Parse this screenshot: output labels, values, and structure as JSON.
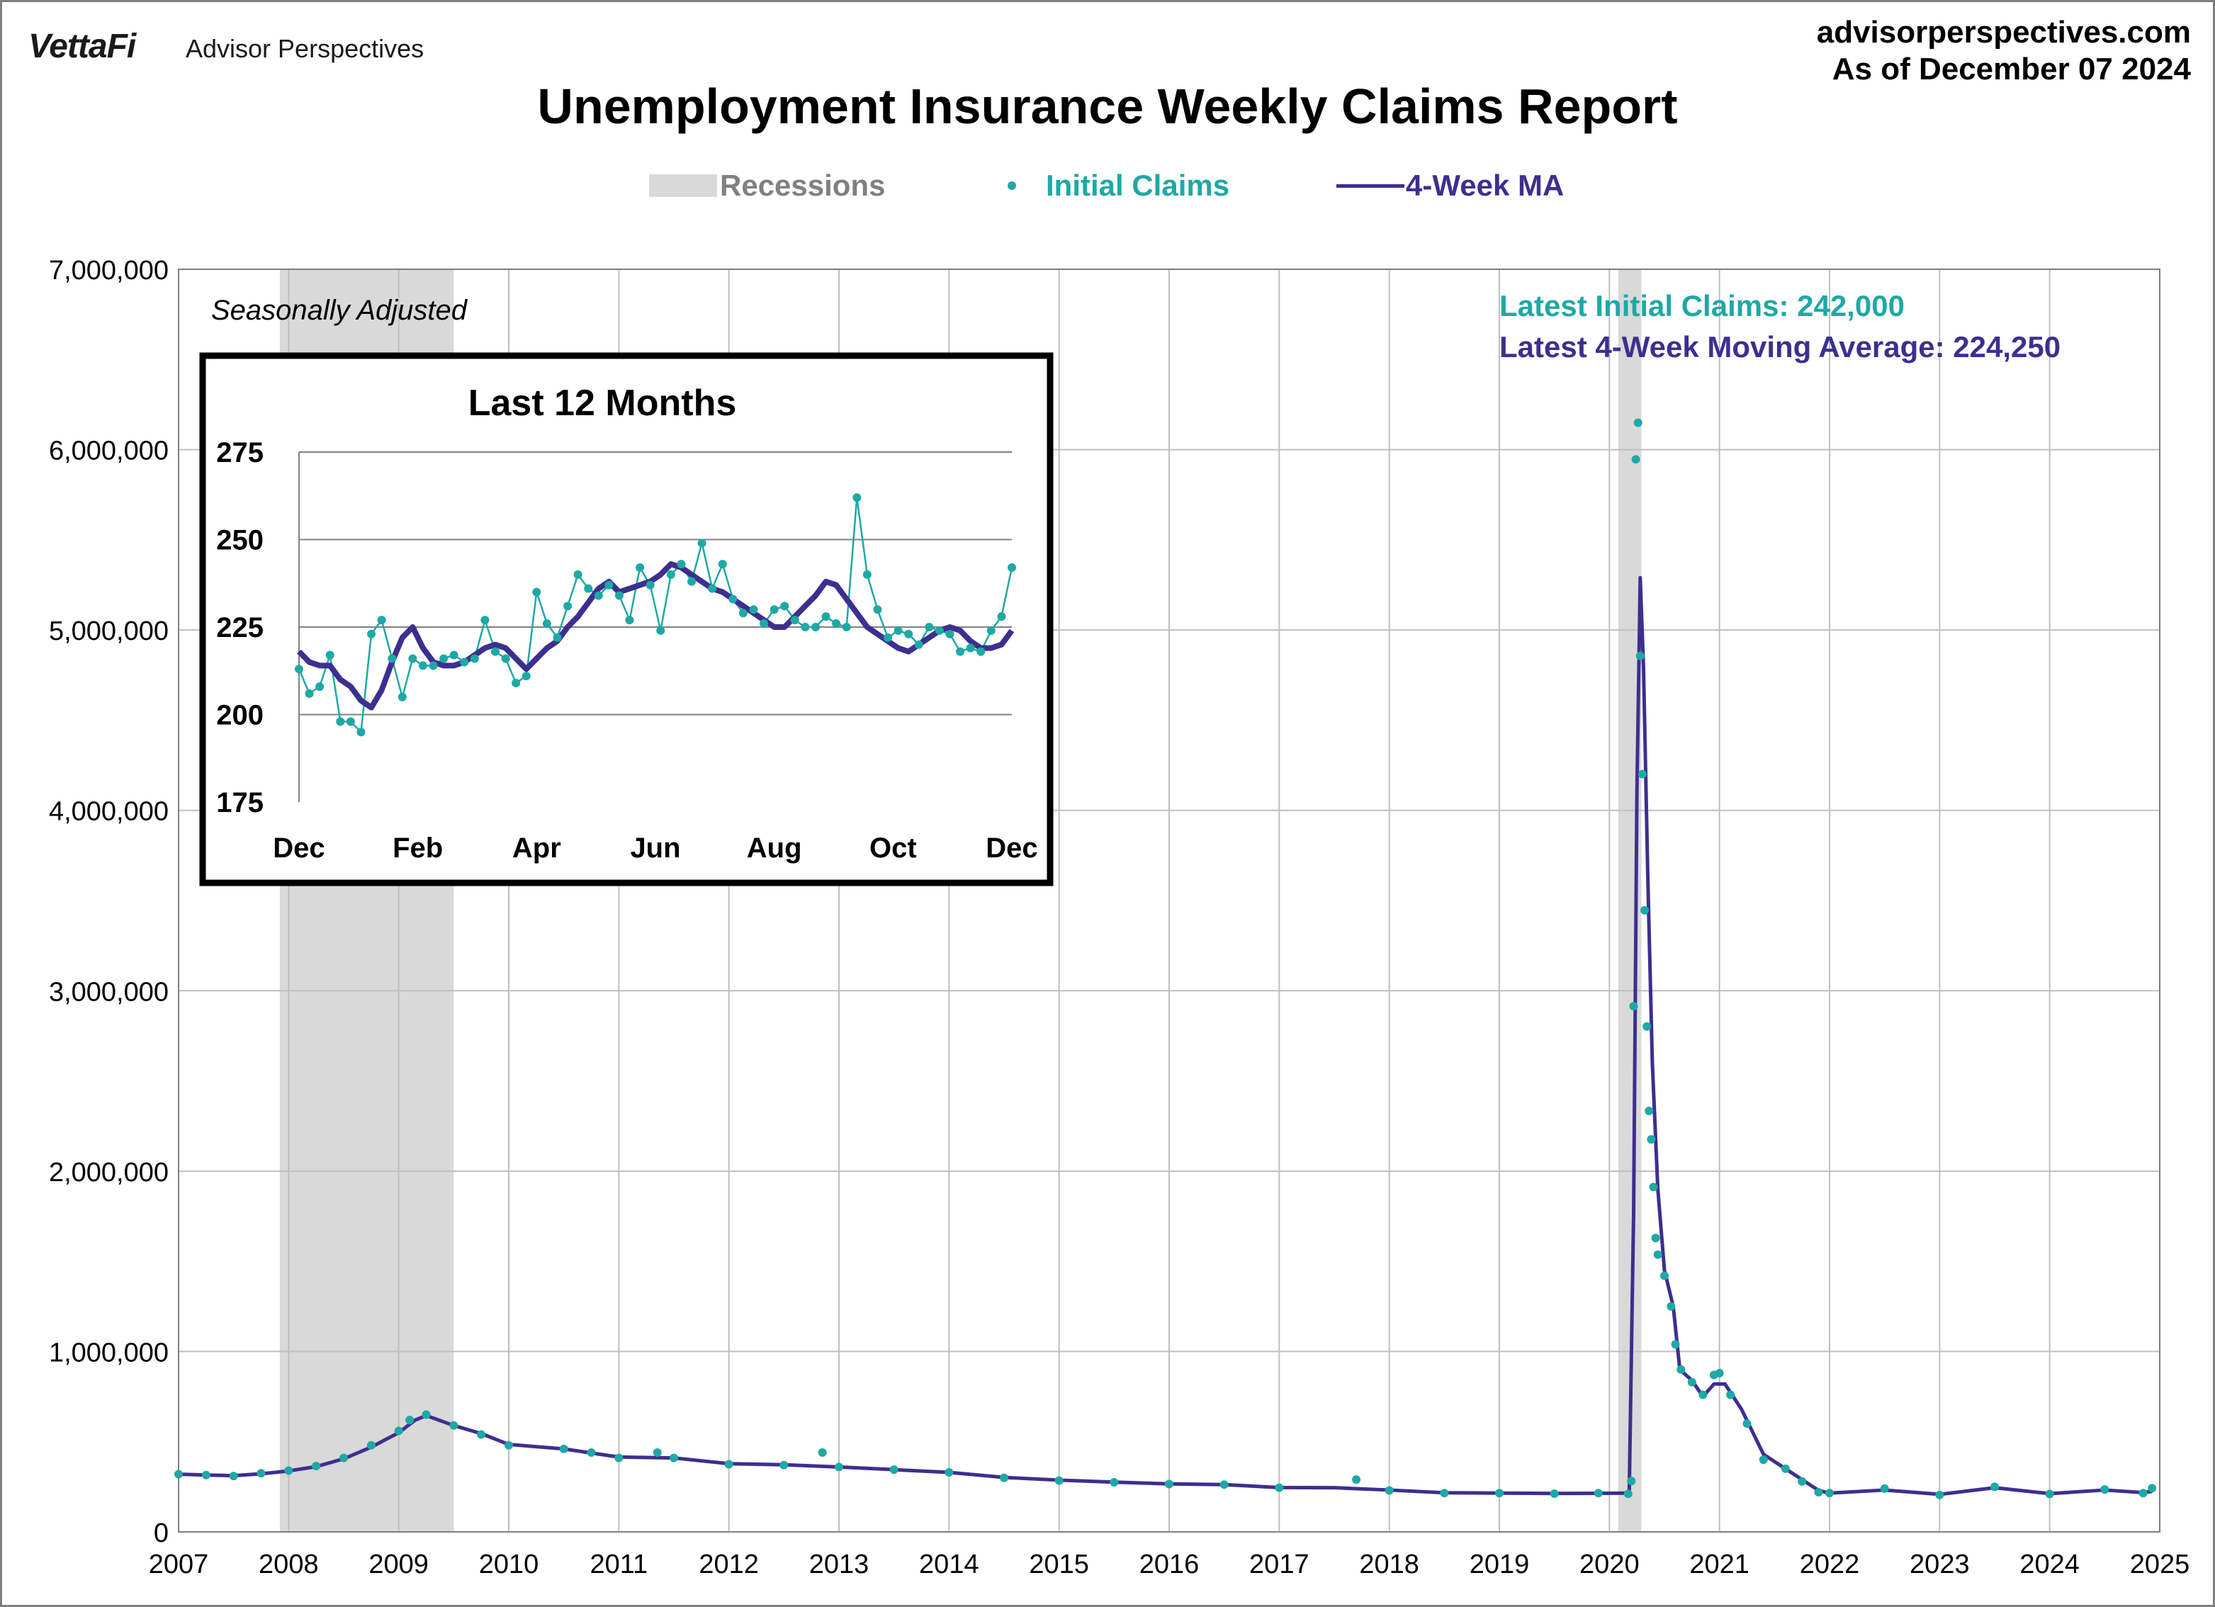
{
  "header": {
    "brand": "VettaFi",
    "brand_sub": "Advisor Perspectives",
    "site": "advisorperspectives.com",
    "as_of": "As of December 07 2024",
    "title": "Unemployment Insurance Weekly Claims Report"
  },
  "legend": {
    "recessions": "Recessions",
    "initial_claims": "Initial Claims",
    "ma": "4-Week MA"
  },
  "annotations": {
    "seasonally_adjusted": "Seasonally Adjusted",
    "latest_claims": "Latest Initial Claims: 242,000",
    "latest_ma": "Latest 4-Week Moving Average: 224,250"
  },
  "colors": {
    "claims": "#1fa8a5",
    "ma": "#3c2f8f",
    "recession": "#d9d9d9",
    "grid": "#bfbfbf"
  },
  "chart_data": [
    {
      "type": "line",
      "id": "main",
      "ylim": [
        0,
        7000000
      ],
      "xlim": [
        2007,
        2025
      ],
      "yticks": [
        {
          "v": 0,
          "label": "0"
        },
        {
          "v": 1000000,
          "label": "1,000,000"
        },
        {
          "v": 2000000,
          "label": "2,000,000"
        },
        {
          "v": 3000000,
          "label": "3,000,000"
        },
        {
          "v": 4000000,
          "label": "4,000,000"
        },
        {
          "v": 5000000,
          "label": "5,000,000"
        },
        {
          "v": 6000000,
          "label": "6,000,000"
        },
        {
          "v": 7000000,
          "label": "7,000,000"
        }
      ],
      "xticks": [
        "2007",
        "2008",
        "2009",
        "2010",
        "2011",
        "2012",
        "2013",
        "2014",
        "2015",
        "2016",
        "2017",
        "2018",
        "2019",
        "2020",
        "2021",
        "2022",
        "2023",
        "2024",
        "2025"
      ],
      "recessions": [
        [
          2007.92,
          2009.5
        ],
        [
          2020.08,
          2020.29
        ]
      ],
      "series": [
        {
          "name": "Initial Claims",
          "style": "markers",
          "points": [
            [
              2007.0,
              320000
            ],
            [
              2007.25,
              315000
            ],
            [
              2007.5,
              310000
            ],
            [
              2007.75,
              325000
            ],
            [
              2008.0,
              340000
            ],
            [
              2008.25,
              365000
            ],
            [
              2008.5,
              410000
            ],
            [
              2008.75,
              480000
            ],
            [
              2009.0,
              560000
            ],
            [
              2009.1,
              620000
            ],
            [
              2009.25,
              650000
            ],
            [
              2009.5,
              590000
            ],
            [
              2009.75,
              540000
            ],
            [
              2010.0,
              480000
            ],
            [
              2010.5,
              460000
            ],
            [
              2010.75,
              440000
            ],
            [
              2011.0,
              410000
            ],
            [
              2011.35,
              440000
            ],
            [
              2011.5,
              410000
            ],
            [
              2012.0,
              375000
            ],
            [
              2012.5,
              370000
            ],
            [
              2012.85,
              440000
            ],
            [
              2013.0,
              360000
            ],
            [
              2013.5,
              345000
            ],
            [
              2014.0,
              330000
            ],
            [
              2014.5,
              300000
            ],
            [
              2015.0,
              285000
            ],
            [
              2015.5,
              275000
            ],
            [
              2016.0,
              265000
            ],
            [
              2016.5,
              262000
            ],
            [
              2017.0,
              245000
            ],
            [
              2017.7,
              290000
            ],
            [
              2018.0,
              230000
            ],
            [
              2018.5,
              215000
            ],
            [
              2019.0,
              215000
            ],
            [
              2019.5,
              212000
            ],
            [
              2019.9,
              215000
            ],
            [
              2020.17,
              211000
            ],
            [
              2020.2,
              282000
            ],
            [
              2020.22,
              2914000
            ],
            [
              2020.24,
              5946000
            ],
            [
              2020.26,
              6149000
            ],
            [
              2020.28,
              4856000
            ],
            [
              2020.3,
              4201000
            ],
            [
              2020.32,
              3446000
            ],
            [
              2020.34,
              2802000
            ],
            [
              2020.36,
              2334000
            ],
            [
              2020.38,
              2176000
            ],
            [
              2020.4,
              1912000
            ],
            [
              2020.42,
              1629000
            ],
            [
              2020.44,
              1537000
            ],
            [
              2020.5,
              1420000
            ],
            [
              2020.56,
              1250000
            ],
            [
              2020.6,
              1040000
            ],
            [
              2020.65,
              900000
            ],
            [
              2020.75,
              830000
            ],
            [
              2020.85,
              760000
            ],
            [
              2020.95,
              870000
            ],
            [
              2021.0,
              880000
            ],
            [
              2021.1,
              760000
            ],
            [
              2021.25,
              600000
            ],
            [
              2021.4,
              400000
            ],
            [
              2021.6,
              350000
            ],
            [
              2021.75,
              280000
            ],
            [
              2021.9,
              220000
            ],
            [
              2022.0,
              215000
            ],
            [
              2022.5,
              240000
            ],
            [
              2023.0,
              205000
            ],
            [
              2023.5,
              250000
            ],
            [
              2024.0,
              210000
            ],
            [
              2024.5,
              235000
            ],
            [
              2024.85,
              215000
            ],
            [
              2024.93,
              242000
            ]
          ]
        },
        {
          "name": "4-Week MA",
          "style": "line",
          "points": [
            [
              2007.0,
              320000
            ],
            [
              2007.25,
              315000
            ],
            [
              2007.5,
              312000
            ],
            [
              2007.75,
              322000
            ],
            [
              2008.0,
              338000
            ],
            [
              2008.25,
              362000
            ],
            [
              2008.5,
              405000
            ],
            [
              2008.75,
              470000
            ],
            [
              2009.0,
              550000
            ],
            [
              2009.15,
              620000
            ],
            [
              2009.25,
              645000
            ],
            [
              2009.5,
              590000
            ],
            [
              2009.75,
              545000
            ],
            [
              2010.0,
              485000
            ],
            [
              2010.5,
              460000
            ],
            [
              2011.0,
              415000
            ],
            [
              2011.5,
              410000
            ],
            [
              2012.0,
              378000
            ],
            [
              2012.5,
              372000
            ],
            [
              2013.0,
              360000
            ],
            [
              2013.5,
              345000
            ],
            [
              2014.0,
              330000
            ],
            [
              2014.5,
              302000
            ],
            [
              2015.0,
              287000
            ],
            [
              2015.5,
              276000
            ],
            [
              2016.0,
              266000
            ],
            [
              2016.5,
              262000
            ],
            [
              2017.0,
              246000
            ],
            [
              2017.5,
              245000
            ],
            [
              2018.0,
              232000
            ],
            [
              2018.5,
              217000
            ],
            [
              2019.0,
              215000
            ],
            [
              2019.5,
              213000
            ],
            [
              2020.0,
              214000
            ],
            [
              2020.18,
              215000
            ],
            [
              2020.22,
              1770000
            ],
            [
              2020.25,
              4100000
            ],
            [
              2020.28,
              5290000
            ],
            [
              2020.31,
              4790000
            ],
            [
              2020.35,
              3600000
            ],
            [
              2020.39,
              2600000
            ],
            [
              2020.44,
              1900000
            ],
            [
              2020.5,
              1450000
            ],
            [
              2020.58,
              1250000
            ],
            [
              2020.64,
              900000
            ],
            [
              2020.75,
              840000
            ],
            [
              2020.85,
              750000
            ],
            [
              2020.95,
              820000
            ],
            [
              2021.05,
              820000
            ],
            [
              2021.2,
              680000
            ],
            [
              2021.4,
              430000
            ],
            [
              2021.6,
              350000
            ],
            [
              2021.75,
              290000
            ],
            [
              2021.9,
              230000
            ],
            [
              2022.0,
              215000
            ],
            [
              2022.5,
              232000
            ],
            [
              2023.0,
              208000
            ],
            [
              2023.5,
              245000
            ],
            [
              2024.0,
              212000
            ],
            [
              2024.5,
              232000
            ],
            [
              2024.85,
              218000
            ],
            [
              2024.93,
              224250
            ]
          ]
        }
      ]
    },
    {
      "type": "line",
      "id": "inset",
      "title": "Last 12 Months",
      "ylim": [
        175,
        275
      ],
      "yticks": [
        "175",
        "200",
        "225",
        "250",
        "275"
      ],
      "xticks": [
        "Dec",
        "Feb",
        "Apr",
        "Jun",
        "Aug",
        "Oct",
        "Dec"
      ],
      "series": [
        {
          "name": "Initial Claims",
          "style": "markers-line",
          "values": [
            213,
            206,
            208,
            217,
            198,
            198,
            195,
            223,
            227,
            216,
            205,
            216,
            214,
            214,
            216,
            217,
            215,
            216,
            227,
            218,
            216,
            209,
            211,
            235,
            226,
            222,
            231,
            240,
            236,
            234,
            237,
            234,
            227,
            242,
            237,
            224,
            240,
            243,
            238,
            249,
            236,
            243,
            233,
            229,
            230,
            226,
            230,
            231,
            227,
            225,
            225,
            228,
            226,
            225,
            262,
            240,
            230,
            222,
            224,
            223,
            220,
            225,
            224,
            223,
            218,
            219,
            218,
            224,
            228,
            242
          ]
        },
        {
          "name": "4-Week MA",
          "style": "line",
          "values": [
            218,
            215,
            214,
            214,
            210,
            208,
            204,
            202,
            207,
            215,
            222,
            225,
            219,
            215,
            214,
            214,
            215,
            217,
            219,
            220,
            219,
            216,
            213,
            216,
            219,
            221,
            225,
            228,
            232,
            236,
            238,
            235,
            236,
            237,
            238,
            240,
            243,
            242,
            240,
            238,
            236,
            235,
            233,
            231,
            229,
            227,
            225,
            225,
            228,
            231,
            234,
            238,
            237,
            233,
            229,
            225,
            223,
            221,
            219,
            218,
            220,
            222,
            224,
            225,
            224,
            221,
            219,
            219,
            220,
            224
          ]
        }
      ]
    }
  ]
}
